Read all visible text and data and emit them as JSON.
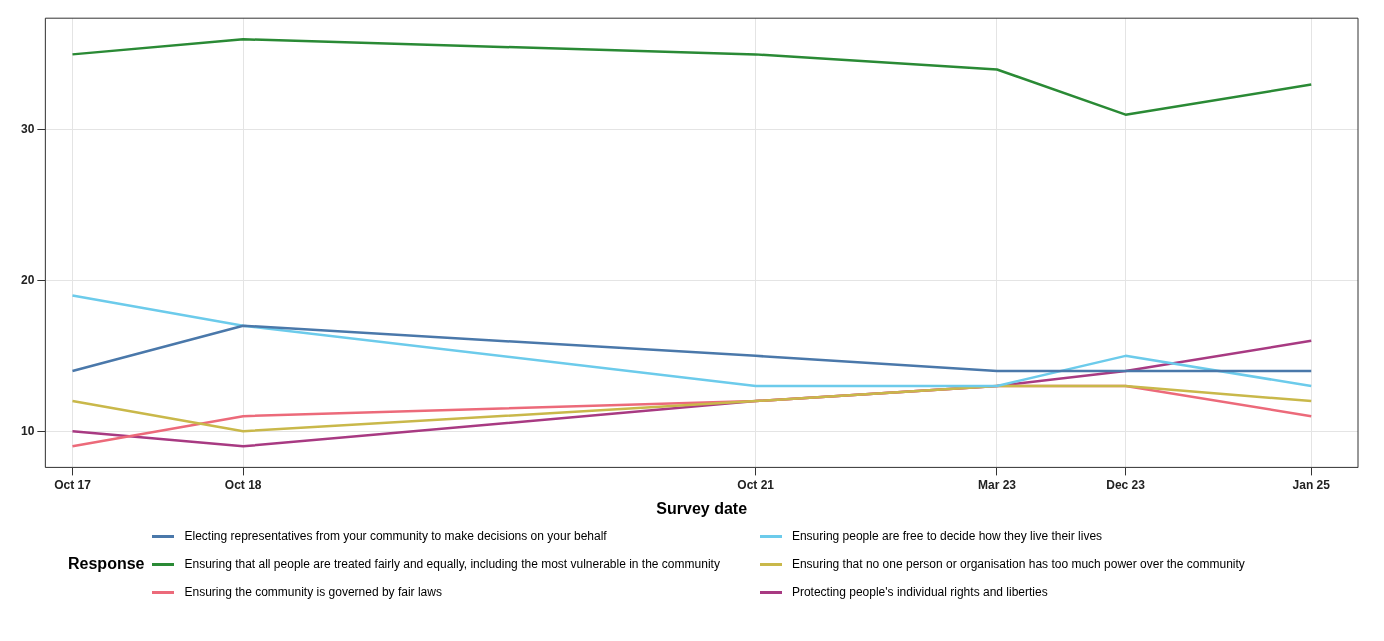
{
  "chart_data": {
    "type": "line",
    "xlabel": "Survey date",
    "legend_title": "Response",
    "legend": "bottom",
    "grid": true,
    "marker": "none",
    "line_style": "solid",
    "x": [
      "2017-10",
      "2018-10",
      "2021-10",
      "2023-03",
      "2023-12",
      "2025-01"
    ],
    "xlim": [
      "2017-08-04",
      "2025-04-11"
    ],
    "xticks": [
      {
        "value": "2017-10",
        "label": "Oct 17"
      },
      {
        "value": "2018-10",
        "label": "Oct 18"
      },
      {
        "value": "2021-10",
        "label": "Oct 21"
      },
      {
        "value": "2023-03",
        "label": "Mar 23"
      },
      {
        "value": "2023-12",
        "label": "Dec 23"
      },
      {
        "value": "2025-01",
        "label": "Jan 25"
      }
    ],
    "ylim": [
      7.6,
      37.4
    ],
    "yticks": [
      10,
      20,
      30
    ],
    "series": [
      {
        "name": "Electing representatives from your community to make decisions on your behalf",
        "color": "#4a78aa",
        "values": [
          14,
          17,
          15,
          14,
          14,
          14
        ]
      },
      {
        "name": "Ensuring people are free to decide how they live their lives",
        "color": "#6ccbeb",
        "values": [
          19,
          17,
          13,
          13,
          15,
          13
        ]
      },
      {
        "name": "Ensuring that all people are treated fairly and equally, including the most vulnerable in the community",
        "color": "#2a8a35",
        "values": [
          35,
          36,
          35,
          34,
          31,
          33
        ]
      },
      {
        "name": "Ensuring that no one person or organisation has too much power over the community",
        "color": "#c9b84a",
        "values": [
          12,
          10,
          12,
          13,
          13,
          12
        ]
      },
      {
        "name": "Ensuring the community is governed by fair laws",
        "color": "#ec6a7a",
        "values": [
          9,
          11,
          12,
          13,
          13,
          11
        ]
      },
      {
        "name": "Protecting people's individual rights and liberties",
        "color": "#a83a82",
        "values": [
          10,
          9,
          12,
          13,
          14,
          16
        ]
      }
    ]
  }
}
